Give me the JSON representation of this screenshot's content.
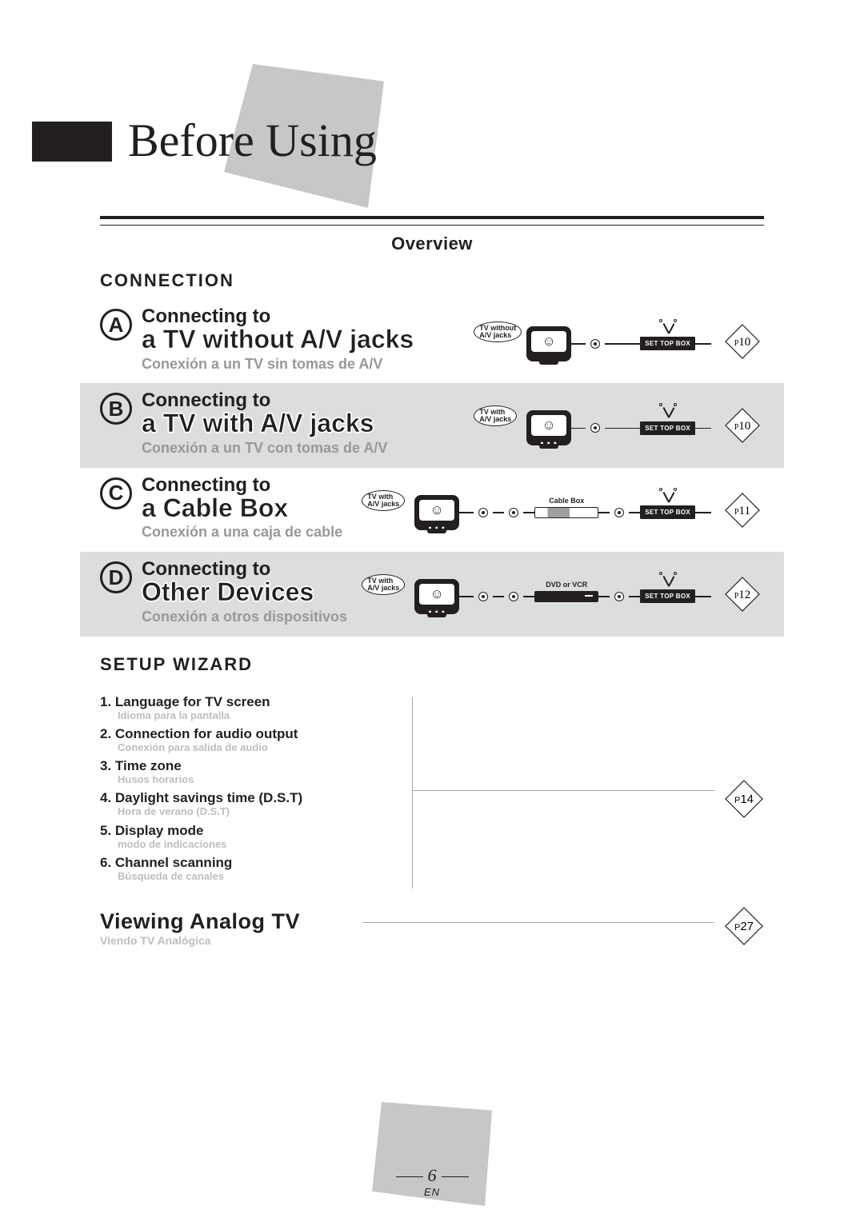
{
  "header": {
    "title": "Before Using"
  },
  "overview_label": "Overview",
  "section_connection": "CONNECTION",
  "section_setup": "SETUP WIZARD",
  "connection_rows": [
    {
      "letter": "A",
      "sub": "Connecting to",
      "main": "a TV without A/V jacks",
      "es": "Conexión a un TV sin tomas de A/V",
      "page": "10",
      "tv_bubble": "TV without\nA/V jacks",
      "mid_label": "",
      "stb_label": "SET TOP BOX",
      "has_mid": false,
      "has_dots": false,
      "bubble2": true
    },
    {
      "letter": "B",
      "sub": "Connecting to",
      "main": "a TV with A/V jacks",
      "es": "Conexión a un TV con tomas de A/V",
      "page": "10",
      "tv_bubble": "TV with\nA/V jacks",
      "mid_label": "",
      "stb_label": "SET TOP BOX",
      "has_mid": false,
      "has_dots": true,
      "bubble2": true
    },
    {
      "letter": "C",
      "sub": "Connecting to",
      "main": "a Cable Box",
      "es": "Conexión a una caja de cable",
      "page": "11",
      "tv_bubble": "TV with\nA/V jacks",
      "mid_label": "Cable Box",
      "stb_label": "SET TOP BOX",
      "has_mid": true,
      "mid_style": "cable",
      "has_dots": true,
      "bubble2": true
    },
    {
      "letter": "D",
      "sub": "Connecting to",
      "main": "Other Devices",
      "es": "Conexión a otros dispositivos",
      "page": "12",
      "tv_bubble": "TV with\nA/V jacks",
      "mid_label": "DVD or VCR",
      "stb_label": "SET TOP BOX",
      "has_mid": true,
      "mid_style": "dvd",
      "has_dots": true,
      "bubble2": true
    }
  ],
  "setup_items": [
    {
      "n": "1.",
      "en": "Language for TV screen",
      "es": "Idioma para la pantalla"
    },
    {
      "n": "2.",
      "en": "Connection for audio output",
      "es": "Conexión para salida de audio"
    },
    {
      "n": "3.",
      "en": "Time zone",
      "es": "Husos horarios"
    },
    {
      "n": "4.",
      "en": "Daylight savings time (D.S.T)",
      "es": "Hora de verano (D.S.T)"
    },
    {
      "n": "5.",
      "en": "Display mode",
      "es": "modo de indicaciones"
    },
    {
      "n": "6.",
      "en": "Channel scanning",
      "es": "Búsqueda de canales"
    }
  ],
  "setup_page": "14",
  "viewing": {
    "title": "Viewing Analog TV",
    "es": "Viendo TV Analógica",
    "page": "27"
  },
  "footer": {
    "page": "6",
    "lang": "EN"
  },
  "colors": {
    "text": "#231f20",
    "light_gray_bg": "#dcddde",
    "deco_gray": "#c6c7c9",
    "muted_text": "#97989a",
    "faint_text": "#bdbebf",
    "line_gray": "#a8a9ab"
  }
}
